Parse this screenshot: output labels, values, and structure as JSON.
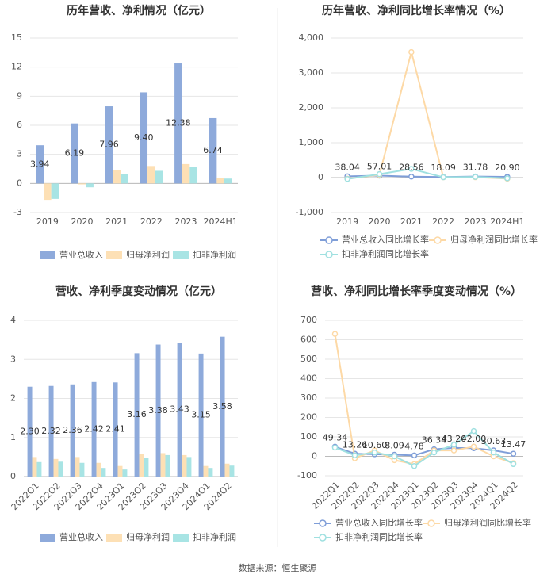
{
  "chart_data": [
    {
      "type": "bar",
      "title": "历年营收、净利情况（亿元）",
      "categories": [
        "2019",
        "2020",
        "2021",
        "2022",
        "2023",
        "2024H1"
      ],
      "series": [
        {
          "name": "营业总收入",
          "color": "#8eaadb",
          "values": [
            3.94,
            6.19,
            7.96,
            9.4,
            12.38,
            6.74
          ],
          "value_labels": [
            "3.94",
            "6.19",
            "7.96",
            "9.40",
            "12.38",
            "6.74"
          ]
        },
        {
          "name": "归母净利润",
          "color": "#fde0b5",
          "values": [
            -1.7,
            -0.1,
            1.4,
            1.8,
            2.0,
            0.6
          ]
        },
        {
          "name": "扣非净利润",
          "color": "#a8e4e4",
          "values": [
            -1.6,
            -0.4,
            1.0,
            1.3,
            1.7,
            0.5
          ]
        }
      ],
      "ylim": [
        -3,
        15
      ],
      "yticks": [
        -3,
        0,
        3,
        6,
        9,
        12,
        15
      ],
      "grid": true,
      "legend": "bottom"
    },
    {
      "type": "line",
      "title": "历年营收、净利同比增长率情况（%）",
      "categories": [
        "2019",
        "2020",
        "2021",
        "2022",
        "2023",
        "2024H1"
      ],
      "series": [
        {
          "name": "营业总收入同比增长率",
          "color": "#7f9ed8",
          "values": [
            38.04,
            57.01,
            28.56,
            18.09,
            31.78,
            20.9
          ],
          "value_labels": [
            "38.04",
            "57.01",
            "28.56",
            "18.09",
            "31.78",
            "20.90"
          ]
        },
        {
          "name": "归母净利润同比增长率",
          "color": "#fdd9a6",
          "values": [
            -30,
            80,
            3600,
            10,
            10,
            -30
          ]
        },
        {
          "name": "扣非净利润同比增长率",
          "color": "#9fe0e0",
          "values": [
            -40,
            100,
            250,
            10,
            20,
            -20
          ]
        }
      ],
      "ylim": [
        -1000,
        4000
      ],
      "yticks": [
        {
          "value": -1000,
          "label": "-1,000"
        },
        0,
        {
          "value": 1000,
          "label": "1,000"
        },
        {
          "value": 2000,
          "label": "2,000"
        },
        {
          "value": 3000,
          "label": "3,000"
        },
        {
          "value": 4000,
          "label": "4,000"
        }
      ],
      "grid": true,
      "legend": "bottom"
    },
    {
      "type": "bar",
      "title": "营收、净利季度变动情况（亿元）",
      "categories": [
        "2022Q1",
        "2022Q2",
        "2022Q3",
        "2022Q4",
        "2023Q1",
        "2023Q2",
        "2023Q3",
        "2023Q4",
        "2024Q1",
        "2024Q2"
      ],
      "series": [
        {
          "name": "营业总收入",
          "color": "#8eaadb",
          "values": [
            2.3,
            2.32,
            2.36,
            2.42,
            2.41,
            3.16,
            3.38,
            3.43,
            3.15,
            3.58
          ],
          "value_labels": [
            "2.30",
            "2.32",
            "2.36",
            "2.42",
            "2.41",
            "3.16",
            "3.38",
            "3.43",
            "3.15",
            "3.58"
          ]
        },
        {
          "name": "归母净利润",
          "color": "#fde0b5",
          "values": [
            0.5,
            0.45,
            0.5,
            0.35,
            0.27,
            0.57,
            0.6,
            0.55,
            0.27,
            0.33
          ]
        },
        {
          "name": "扣非净利润",
          "color": "#a8e4e4",
          "values": [
            0.37,
            0.38,
            0.35,
            0.22,
            0.18,
            0.47,
            0.55,
            0.5,
            0.22,
            0.28
          ]
        }
      ],
      "ylim": [
        0,
        4
      ],
      "yticks": [
        0,
        1,
        2,
        3,
        4
      ],
      "grid": true,
      "legend": "bottom"
    },
    {
      "type": "line",
      "title": "营收、净利同比增长率季度变动情况（%）",
      "categories": [
        "2022Q1",
        "2022Q2",
        "2022Q3",
        "2022Q4",
        "2023Q1",
        "2023Q2",
        "2023Q3",
        "2023Q4",
        "2024Q1",
        "2024Q2"
      ],
      "series": [
        {
          "name": "营业总收入同比增长率",
          "color": "#7f9ed8",
          "values": [
            49.34,
            13.26,
            10.6,
            8.09,
            4.78,
            36.34,
            43.2,
            42.0,
            30.63,
            13.47
          ],
          "value_labels": [
            "49.34",
            "13.26",
            "10.60",
            "8.09",
            "4.78",
            "36.34",
            "43.20",
            "42.00",
            "30.63",
            "13.47"
          ]
        },
        {
          "name": "归母净利润同比增长率",
          "color": "#fdd9a6",
          "values": [
            630,
            -10,
            30,
            -20,
            -40,
            30,
            30,
            50,
            0,
            -35
          ]
        },
        {
          "name": "扣非净利润同比增长率",
          "color": "#9fe0e0",
          "values": [
            45,
            5,
            20,
            0,
            -50,
            20,
            60,
            130,
            20,
            -40
          ]
        }
      ],
      "ylim": [
        -100,
        700
      ],
      "yticks": [
        -100,
        0,
        100,
        200,
        300,
        400,
        500,
        600,
        700
      ],
      "grid": true,
      "legend": "bottom"
    }
  ],
  "source": "数据来源：恒生聚源"
}
